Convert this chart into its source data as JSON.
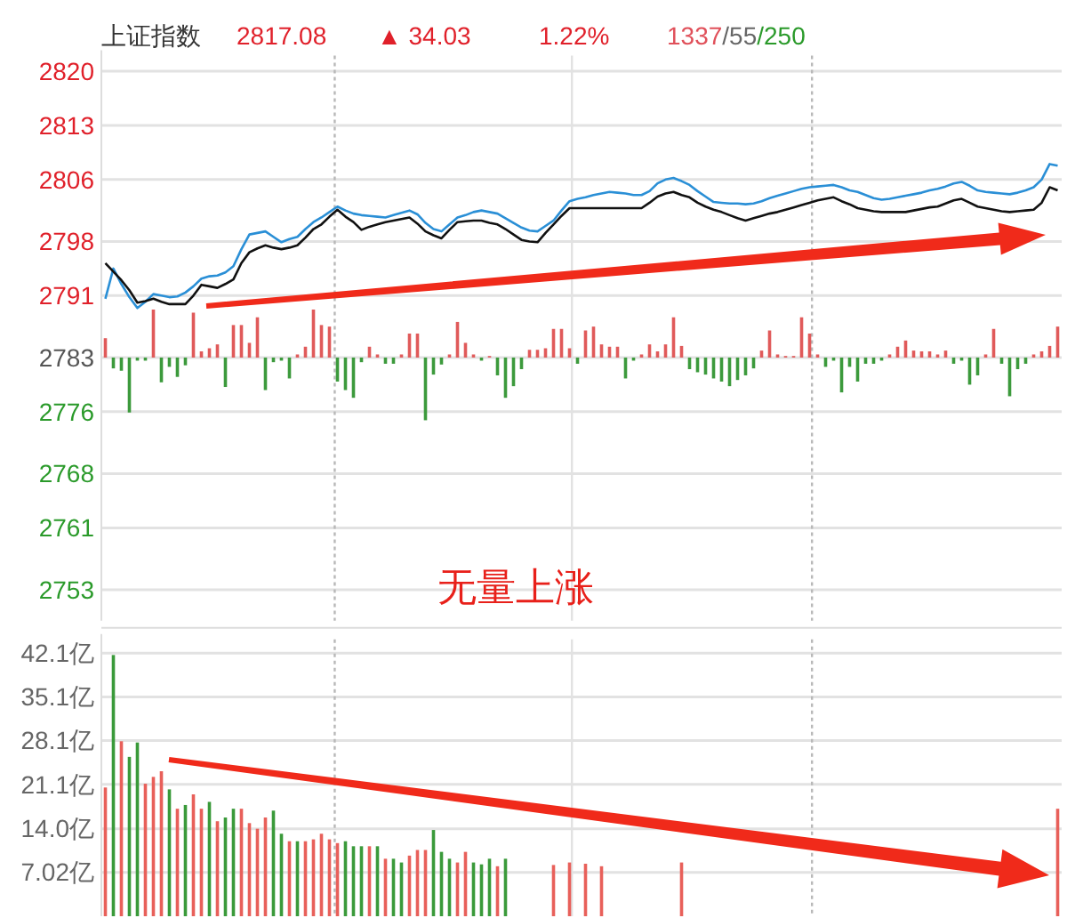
{
  "chart_data": [
    {
      "type": "line",
      "title": "上证指数",
      "annotations": [
        "2817.08",
        "▲ 34.03",
        "1.22%",
        "1337/55/250",
        "无量上涨"
      ],
      "categories": [
        null,
        null,
        null,
        null,
        null,
        null,
        null,
        null,
        null,
        null,
        null,
        null,
        null,
        null,
        null,
        null,
        null,
        null,
        null,
        null,
        null,
        null,
        null,
        null,
        null,
        null,
        null,
        null,
        null,
        null,
        null,
        null,
        null,
        null,
        null,
        null,
        null,
        null,
        null,
        null,
        null,
        null,
        null,
        null,
        null,
        null,
        null,
        null,
        null,
        null,
        null,
        null,
        null,
        null,
        null,
        null,
        null,
        null,
        null,
        null,
        null,
        null,
        null,
        null,
        null,
        null,
        null,
        null,
        null,
        null,
        null,
        null,
        null,
        null,
        null,
        null,
        null,
        null,
        null,
        null,
        null,
        null,
        null,
        null,
        null,
        null,
        null,
        null,
        null,
        null,
        null,
        null,
        null,
        null,
        null,
        null,
        null,
        null,
        null,
        null,
        null,
        null,
        null,
        null,
        null,
        null,
        null,
        null,
        null,
        null,
        null,
        null,
        null,
        null,
        null,
        null,
        null,
        null,
        null,
        null
      ],
      "ylim": [
        2749,
        2822
      ],
      "yticks": [
        2820,
        2813,
        2806,
        2798,
        2791,
        2783,
        2776,
        2768,
        2761,
        2753
      ],
      "grid": true,
      "series": [
        {
          "type": "line",
          "color": "#2a8fd6",
          "values": [
            2790.6,
            2794.5,
            2792.5,
            2790.8,
            2789.4,
            2790.2,
            2791.2,
            2791.0,
            2790.8,
            2790.9,
            2791.4,
            2792.2,
            2793.2,
            2793.5,
            2793.6,
            2794.0,
            2794.8,
            2797.0,
            2798.9,
            2799.1,
            2799.3,
            2798.6,
            2797.9,
            2798.3,
            2798.6,
            2799.6,
            2800.5,
            2801.1,
            2801.8,
            2802.5,
            2802.0,
            2801.6,
            2801.4,
            2801.3,
            2801.2,
            2801.1,
            2801.4,
            2801.7,
            2802.0,
            2801.5,
            2800.4,
            2799.6,
            2799.3,
            2800.2,
            2801.1,
            2801.4,
            2801.8,
            2802.0,
            2801.8,
            2801.6,
            2801.0,
            2800.4,
            2799.8,
            2799.4,
            2799.3,
            2800.0,
            2800.7,
            2802.0,
            2803.2,
            2803.5,
            2803.7,
            2804.0,
            2804.2,
            2804.4,
            2804.3,
            2804.2,
            2804.0,
            2804.0,
            2804.5,
            2805.5,
            2806.0,
            2806.2,
            2805.8,
            2805.3,
            2804.5,
            2803.8,
            2803.1,
            2803.0,
            2802.9,
            2802.9,
            2802.8,
            2802.9,
            2803.2,
            2803.6,
            2803.9,
            2804.2,
            2804.5,
            2804.8,
            2805.0,
            2805.1,
            2805.2,
            2805.3,
            2805.0,
            2804.6,
            2804.4,
            2804.0,
            2803.6,
            2803.4,
            2803.5,
            2803.7,
            2803.9,
            2804.1,
            2804.3,
            2804.6,
            2804.8,
            2805.1,
            2805.5,
            2805.7,
            2805.2,
            2804.6,
            2804.4,
            2804.3,
            2804.2,
            2804.1,
            2804.3,
            2804.6,
            2805.0,
            2806.0,
            2808.0,
            2807.8
          ]
        },
        {
          "type": "line",
          "color": "#111111",
          "values": [
            2795.2,
            2794.1,
            2793.0,
            2791.7,
            2790.1,
            2790.3,
            2790.6,
            2790.2,
            2789.9,
            2789.9,
            2789.9,
            2791.0,
            2792.4,
            2792.2,
            2792.0,
            2792.5,
            2793.1,
            2795.2,
            2796.6,
            2797.1,
            2797.5,
            2797.2,
            2797.0,
            2797.2,
            2797.5,
            2798.5,
            2799.6,
            2800.2,
            2801.2,
            2802.1,
            2801.2,
            2800.5,
            2799.5,
            2799.9,
            2800.2,
            2800.5,
            2800.7,
            2800.9,
            2801.1,
            2800.3,
            2799.3,
            2798.8,
            2798.4,
            2799.5,
            2800.5,
            2800.6,
            2800.7,
            2800.7,
            2800.4,
            2800.2,
            2799.6,
            2798.9,
            2798.2,
            2798.0,
            2797.9,
            2799.1,
            2800.2,
            2801.3,
            2802.3,
            2802.3,
            2802.3,
            2802.3,
            2802.3,
            2802.3,
            2802.3,
            2802.3,
            2802.3,
            2802.3,
            2803.0,
            2803.8,
            2804.2,
            2804.4,
            2804.0,
            2803.7,
            2803.0,
            2802.5,
            2802.1,
            2801.8,
            2801.4,
            2801.0,
            2800.7,
            2801.0,
            2801.3,
            2801.6,
            2801.8,
            2802.1,
            2802.4,
            2802.7,
            2803.0,
            2803.3,
            2803.5,
            2803.7,
            2803.2,
            2802.8,
            2802.3,
            2802.1,
            2801.9,
            2801.8,
            2801.8,
            2801.8,
            2801.8,
            2802.0,
            2802.2,
            2802.4,
            2802.5,
            2802.9,
            2803.3,
            2803.5,
            2803.0,
            2802.5,
            2802.3,
            2802.1,
            2801.9,
            2801.8,
            2801.9,
            2802.0,
            2802.1,
            2803.0,
            2805.0,
            2804.6
          ]
        },
        {
          "type": "bar",
          "values": [
            2.5,
            -1.4,
            -1.7,
            -7.1,
            -0.4,
            -0.4,
            6.2,
            -3.2,
            -1.2,
            -2.5,
            -1.0,
            5.8,
            0.8,
            1.2,
            1.7,
            -3.8,
            4.2,
            4.2,
            1.9,
            5.2,
            -4.2,
            -0.6,
            -0.4,
            -2.7,
            0.4,
            1.4,
            6.2,
            4.2,
            4.0,
            -3.1,
            -4.2,
            -5.2,
            -0.6,
            1.4,
            0.4,
            -0.8,
            -0.8,
            0.4,
            3.1,
            3.1,
            -8.1,
            -2.2,
            -0.9,
            0.4,
            4.6,
            1.9,
            0.4,
            -0.4,
            0.2,
            -2.3,
            -5.2,
            -3.7,
            -1.5,
            1.0,
            1.0,
            1.2,
            3.7,
            3.7,
            1.2,
            -0.8,
            3.5,
            4.0,
            1.7,
            1.4,
            1.4,
            -2.7,
            -0.4,
            0.4,
            1.7,
            0.8,
            1.7,
            5.2,
            1.5,
            -1.5,
            -1.9,
            -2.2,
            -2.7,
            -3.1,
            -3.7,
            -2.9,
            -2.3,
            -1.4,
            0.9,
            3.5,
            0.4,
            0.2,
            0.2,
            5.2,
            3.1,
            0.4,
            -1.2,
            -0.4,
            -4.5,
            -1.2,
            -3.1,
            -0.8,
            -0.8,
            -0.4,
            0.4,
            1.4,
            2.2,
            0.9,
            0.8,
            0.8,
            0.4,
            0.9,
            -0.8,
            -0.4,
            -3.5,
            -2.3,
            0.4,
            3.7,
            -0.8,
            -5.0,
            -1.5,
            -0.8,
            0.4,
            0.8,
            1.5,
            4.0
          ],
          "base": [
            2783,
            2783,
            2783,
            2783,
            2783,
            2783,
            2783,
            2783,
            2783,
            2783,
            2783,
            2783,
            2783,
            2783,
            2783,
            2783,
            2783,
            2783,
            2783,
            2783,
            2783,
            2783,
            2783,
            2783,
            2783,
            2783,
            2783,
            2783,
            2783,
            2783,
            2783,
            2783,
            2783,
            2783,
            2783,
            2783,
            2783,
            2783,
            2783,
            2783,
            2783,
            2783,
            2783,
            2783,
            2783,
            2783,
            2783,
            2783,
            2783,
            2783,
            2783,
            2783,
            2783,
            2783,
            2783,
            2783,
            2783,
            2783,
            2783,
            2783,
            2783,
            2783,
            2783,
            2783,
            2783,
            2783,
            2783,
            2783,
            2783,
            2783,
            2783,
            2783,
            2783,
            2783,
            2783,
            2783,
            2783,
            2783,
            2783,
            2783,
            2783,
            2783,
            2783,
            2783,
            2783,
            2783,
            2783,
            2783,
            2783,
            2783,
            2783,
            2783,
            2783,
            2783,
            2783,
            2783,
            2783,
            2783,
            2783,
            2783,
            2783,
            2783,
            2783,
            2783,
            2783,
            2783,
            2783,
            2783,
            2783,
            2783,
            2783,
            2783,
            2783,
            2783,
            2783,
            2783,
            2783,
            2783,
            2783,
            2783
          ],
          "colors": [
            "#e05a5a",
            "#3c9a3c",
            "#3c9a3c",
            "#3c9a3c",
            "#3c9a3c",
            "#3c9a3c",
            "#e05a5a",
            "#3c9a3c",
            "#3c9a3c",
            "#3c9a3c",
            "#3c9a3c",
            "#e05a5a",
            "#e05a5a",
            "#e05a5a",
            "#e05a5a",
            "#3c9a3c",
            "#e05a5a",
            "#e05a5a",
            "#e05a5a",
            "#e05a5a",
            "#3c9a3c",
            "#3c9a3c",
            "#3c9a3c",
            "#3c9a3c",
            "#e05a5a",
            "#e05a5a",
            "#e05a5a",
            "#e05a5a",
            "#e05a5a",
            "#3c9a3c",
            "#3c9a3c",
            "#3c9a3c",
            "#3c9a3c",
            "#e05a5a",
            "#e05a5a",
            "#3c9a3c",
            "#3c9a3c",
            "#e05a5a",
            "#e05a5a",
            "#e05a5a",
            "#3c9a3c",
            "#3c9a3c",
            "#3c9a3c",
            "#e05a5a",
            "#e05a5a",
            "#e05a5a",
            "#e05a5a",
            "#3c9a3c",
            "#e05a5a",
            "#3c9a3c",
            "#3c9a3c",
            "#3c9a3c",
            "#3c9a3c",
            "#e05a5a",
            "#e05a5a",
            "#e05a5a",
            "#e05a5a",
            "#e05a5a",
            "#e05a5a",
            "#3c9a3c",
            "#e05a5a",
            "#e05a5a",
            "#e05a5a",
            "#e05a5a",
            "#e05a5a",
            "#3c9a3c",
            "#3c9a3c",
            "#e05a5a",
            "#e05a5a",
            "#e05a5a",
            "#e05a5a",
            "#e05a5a",
            "#e05a5a",
            "#3c9a3c",
            "#3c9a3c",
            "#3c9a3c",
            "#3c9a3c",
            "#3c9a3c",
            "#3c9a3c",
            "#3c9a3c",
            "#3c9a3c",
            "#3c9a3c",
            "#e05a5a",
            "#e05a5a",
            "#e05a5a",
            "#e05a5a",
            "#e05a5a",
            "#e05a5a",
            "#e05a5a",
            "#e05a5a",
            "#3c9a3c",
            "#3c9a3c",
            "#3c9a3c",
            "#3c9a3c",
            "#3c9a3c",
            "#3c9a3c",
            "#3c9a3c",
            "#3c9a3c",
            "#e05a5a",
            "#e05a5a",
            "#e05a5a",
            "#e05a5a",
            "#e05a5a",
            "#e05a5a",
            "#e05a5a",
            "#e05a5a",
            "#3c9a3c",
            "#3c9a3c",
            "#3c9a3c",
            "#3c9a3c",
            "#e05a5a",
            "#e05a5a",
            "#3c9a3c",
            "#3c9a3c",
            "#3c9a3c",
            "#3c9a3c",
            "#e05a5a",
            "#e05a5a",
            "#e05a5a",
            "#e05a5a"
          ]
        }
      ]
    },
    {
      "type": "bar",
      "categories": [
        null,
        null,
        null,
        null,
        null,
        null,
        null,
        null,
        null,
        null,
        null,
        null,
        null,
        null,
        null,
        null,
        null,
        null,
        null,
        null,
        null,
        null,
        null,
        null,
        null,
        null,
        null,
        null,
        null,
        null,
        null,
        null,
        null,
        null,
        null,
        null,
        null,
        null,
        null,
        null,
        null,
        null,
        null,
        null,
        null,
        null,
        null,
        null,
        null,
        null,
        null,
        null,
        null,
        null,
        null,
        null,
        null,
        null,
        null,
        null,
        null,
        null,
        null,
        null,
        null,
        null,
        null,
        null,
        null,
        null,
        null,
        null,
        null,
        null,
        null,
        null,
        null,
        null,
        null,
        null,
        null,
        null,
        null,
        null,
        null,
        null,
        null,
        null,
        null,
        null,
        null,
        null,
        null,
        null,
        null,
        null,
        null,
        null,
        null,
        null,
        null,
        null,
        null,
        null,
        null,
        null,
        null,
        null,
        null,
        null,
        null,
        null,
        null,
        null,
        null,
        null,
        null,
        null,
        null,
        null
      ],
      "ylim": [
        0,
        44.3
      ],
      "yticks": [
        {
          "value": 7.02,
          "label": "7.02亿"
        },
        {
          "value": 14.0,
          "label": "14.0亿"
        },
        {
          "value": 21.1,
          "label": "21.1亿"
        },
        {
          "value": 28.1,
          "label": "28.1亿"
        },
        {
          "value": 35.1,
          "label": "35.1亿"
        },
        {
          "value": 42.1,
          "label": "42.1亿"
        }
      ],
      "grid": true,
      "values": [
        20.6,
        41.8,
        28.0,
        25.5,
        27.8,
        21.2,
        22.3,
        23.2,
        20.3,
        17.2,
        17.8,
        19.5,
        17.2,
        18.3,
        15.2,
        15.8,
        17.2,
        17.2,
        14.9,
        14.0,
        15.8,
        16.9,
        13.2,
        12.0,
        12.0,
        12.0,
        12.3,
        13.2,
        12.3,
        11.7,
        12.0,
        11.2,
        11.2,
        11.2,
        11.2,
        9.2,
        9.2,
        8.6,
        9.7,
        10.6,
        10.6,
        13.8,
        10.3,
        9.2,
        8.6,
        10.3,
        8.6,
        8.3,
        9.2,
        8.0,
        9.2,
        null,
        null,
        null,
        null,
        null,
        8.2,
        null,
        8.6,
        null,
        8.4,
        null,
        8.0,
        null,
        null,
        null,
        null,
        null,
        null,
        null,
        null,
        null,
        8.6,
        null,
        null,
        null,
        null,
        null,
        null,
        null,
        null,
        null,
        null,
        null,
        null,
        null,
        null,
        null,
        null,
        null,
        null,
        null,
        null,
        null,
        null,
        null,
        null,
        null,
        null,
        null,
        null,
        null,
        null,
        null,
        null,
        null,
        null,
        null,
        null,
        null,
        null,
        null,
        null,
        null,
        null,
        null,
        null,
        null,
        null,
        17.2
      ],
      "colors": [
        "#e8605a",
        "#3a9a3a",
        "#e8605a",
        "#3a9a3a",
        "#3a9a3a",
        "#e8605a",
        "#e8605a",
        "#e8605a",
        "#3a9a3a",
        "#e8605a",
        "#3a9a3a",
        "#e8605a",
        "#e8605a",
        "#3a9a3a",
        "#e8605a",
        "#3a9a3a",
        "#3a9a3a",
        "#e8605a",
        "#e8605a",
        "#e8605a",
        "#e8605a",
        "#3a9a3a",
        "#3a9a3a",
        "#e8605a",
        "#3a9a3a",
        "#e8605a",
        "#e8605a",
        "#e8605a",
        "#e8605a",
        "#e8605a",
        "#3a9a3a",
        "#3a9a3a",
        "#3a9a3a",
        "#e8605a",
        "#3a9a3a",
        "#e8605a",
        "#3a9a3a",
        "#3a9a3a",
        "#e8605a",
        "#e8605a",
        "#e8605a",
        "#3a9a3a",
        "#3a9a3a",
        "#3a9a3a",
        "#e8605a",
        "#e8605a",
        "#3a9a3a",
        "#3a9a3a",
        "#3a9a3a",
        "#e8605a",
        "#3a9a3a",
        null,
        null,
        null,
        null,
        null,
        "#e8605a",
        null,
        "#e8605a",
        null,
        "#e8605a",
        null,
        "#e8605a",
        null,
        null,
        null,
        null,
        null,
        null,
        null,
        null,
        null,
        "#e8605a",
        null,
        null,
        null,
        null,
        null,
        null,
        null,
        null,
        null,
        null,
        null,
        null,
        null,
        null,
        null,
        null,
        null,
        null,
        null,
        null,
        null,
        null,
        null,
        null,
        null,
        null,
        null,
        null,
        null,
        null,
        null,
        null,
        null,
        null,
        null,
        null,
        null,
        null,
        null,
        null,
        null,
        null,
        null,
        null,
        null,
        null,
        "#e8605a"
      ]
    }
  ]
}
